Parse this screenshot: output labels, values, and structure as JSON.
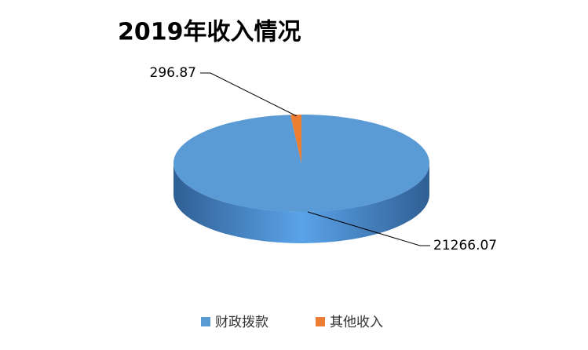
{
  "chart_data": {
    "type": "pie",
    "title": "2019年收入情况",
    "categories": [
      "财政拨款",
      "其他收入"
    ],
    "values": [
      21266.07,
      296.87
    ],
    "colors": [
      "#5b9bd5",
      "#ed7d31"
    ],
    "legend": "bottom"
  }
}
